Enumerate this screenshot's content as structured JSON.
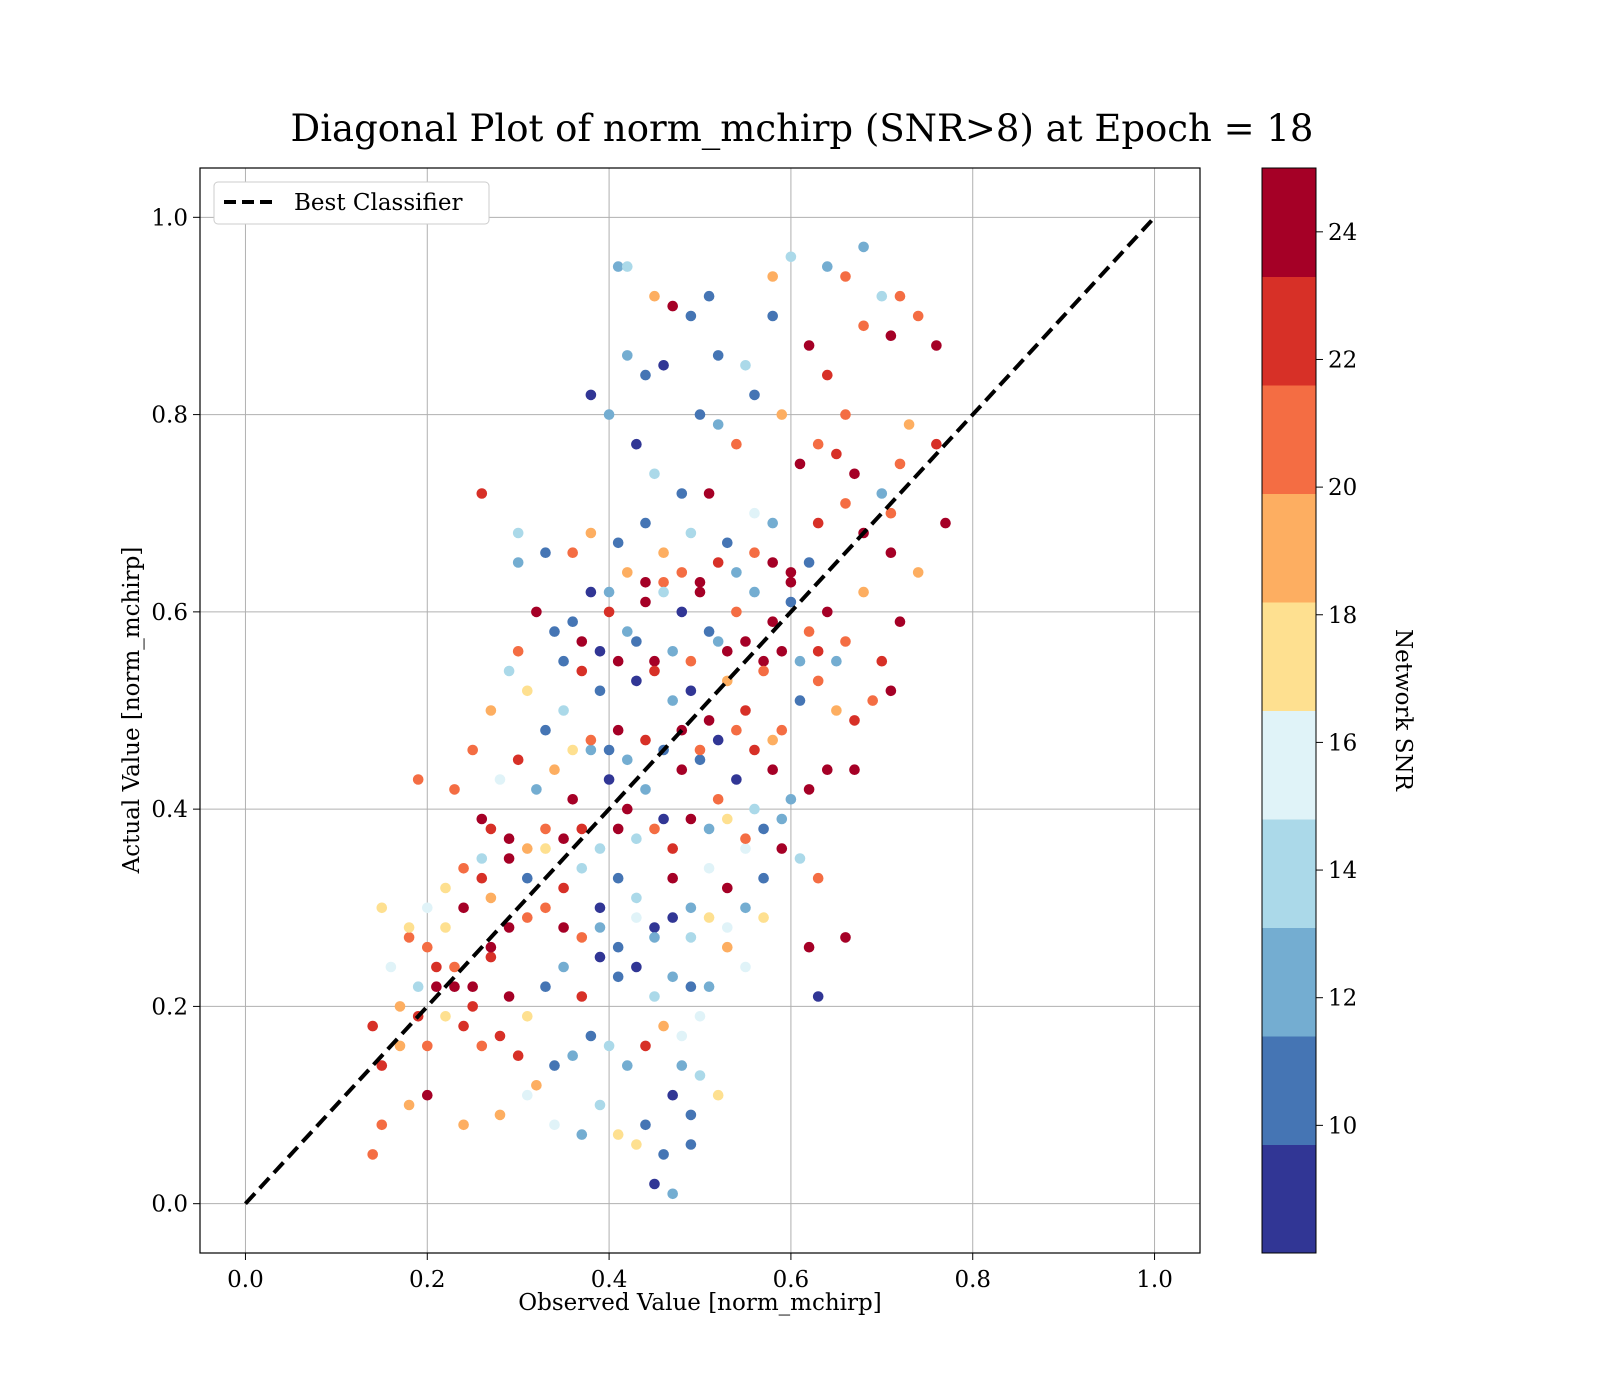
{
  "chart_data": {
    "type": "scatter",
    "title": "Diagonal Plot of norm_mchirp (SNR>8) at Epoch = 18",
    "xlabel": "Observed Value [norm_mchirp]",
    "ylabel": "Actual Value [norm_mchirp]",
    "xlim": [
      -0.05,
      1.05
    ],
    "ylim": [
      -0.05,
      1.05
    ],
    "xticks": [
      "0.0",
      "0.2",
      "0.4",
      "0.6",
      "0.8",
      "1.0"
    ],
    "yticks": [
      "0.0",
      "0.2",
      "0.4",
      "0.6",
      "0.8",
      "1.0"
    ],
    "grid": true,
    "legend": {
      "placement": "top-left",
      "entries": [
        "Best Classifier"
      ]
    },
    "reference_line": {
      "name": "Best Classifier",
      "x": [
        0.0,
        1.0
      ],
      "y": [
        0.0,
        1.0
      ],
      "style": "dashed",
      "color": "#000000"
    },
    "colorbar": {
      "label": "Network SNR",
      "range": [
        8,
        25
      ],
      "ticks": [
        "10",
        "12",
        "14",
        "16",
        "18",
        "20",
        "22",
        "24"
      ],
      "colors": [
        "#313695",
        "#4575b4",
        "#74add1",
        "#abd9e9",
        "#e0f3f8",
        "#fee090",
        "#fdae61",
        "#f46d43",
        "#d73027",
        "#a50026"
      ]
    },
    "points": [
      [
        0.41,
        0.95,
        13.0
      ],
      [
        0.42,
        0.95,
        13.5
      ],
      [
        0.47,
        0.91,
        24.5
      ],
      [
        0.49,
        0.9,
        11.0
      ],
      [
        0.51,
        0.92,
        11.0
      ],
      [
        0.45,
        0.92,
        19.0
      ],
      [
        0.58,
        0.94,
        18.5
      ],
      [
        0.6,
        0.96,
        14.0
      ],
      [
        0.64,
        0.95,
        11.5
      ],
      [
        0.66,
        0.94,
        21.0
      ],
      [
        0.68,
        0.97,
        12.5
      ],
      [
        0.7,
        0.92,
        14.0
      ],
      [
        0.72,
        0.92,
        21.0
      ],
      [
        0.38,
        0.82,
        9.5
      ],
      [
        0.42,
        0.86,
        13.0
      ],
      [
        0.44,
        0.84,
        10.0
      ],
      [
        0.46,
        0.85,
        9.0
      ],
      [
        0.52,
        0.86,
        10.5
      ],
      [
        0.55,
        0.85,
        13.5
      ],
      [
        0.58,
        0.9,
        10.0
      ],
      [
        0.62,
        0.87,
        23.5
      ],
      [
        0.68,
        0.89,
        21.5
      ],
      [
        0.71,
        0.88,
        24.0
      ],
      [
        0.74,
        0.9,
        20.0
      ],
      [
        0.76,
        0.87,
        24.5
      ],
      [
        0.64,
        0.84,
        23.0
      ],
      [
        0.66,
        0.8,
        20.5
      ],
      [
        0.4,
        0.8,
        12.0
      ],
      [
        0.43,
        0.77,
        9.0
      ],
      [
        0.45,
        0.74,
        14.0
      ],
      [
        0.48,
        0.72,
        11.0
      ],
      [
        0.5,
        0.8,
        10.0
      ],
      [
        0.52,
        0.79,
        11.5
      ],
      [
        0.54,
        0.77,
        21.0
      ],
      [
        0.56,
        0.82,
        10.5
      ],
      [
        0.59,
        0.8,
        19.5
      ],
      [
        0.61,
        0.75,
        24.5
      ],
      [
        0.63,
        0.77,
        21.5
      ],
      [
        0.65,
        0.76,
        22.5
      ],
      [
        0.67,
        0.74,
        24.0
      ],
      [
        0.7,
        0.72,
        12.0
      ],
      [
        0.72,
        0.75,
        20.0
      ],
      [
        0.76,
        0.77,
        22.0
      ],
      [
        0.73,
        0.79,
        19.5
      ],
      [
        0.26,
        0.72,
        22.5
      ],
      [
        0.3,
        0.68,
        14.0
      ],
      [
        0.3,
        0.65,
        12.5
      ],
      [
        0.33,
        0.66,
        11.0
      ],
      [
        0.36,
        0.66,
        20.0
      ],
      [
        0.38,
        0.68,
        18.5
      ],
      [
        0.41,
        0.67,
        11.0
      ],
      [
        0.44,
        0.69,
        10.5
      ],
      [
        0.46,
        0.66,
        19.5
      ],
      [
        0.49,
        0.68,
        14.5
      ],
      [
        0.51,
        0.72,
        24.5
      ],
      [
        0.53,
        0.67,
        11.0
      ],
      [
        0.56,
        0.7,
        16.0
      ],
      [
        0.58,
        0.69,
        11.5
      ],
      [
        0.6,
        0.64,
        23.5
      ],
      [
        0.63,
        0.69,
        22.5
      ],
      [
        0.66,
        0.71,
        21.0
      ],
      [
        0.68,
        0.68,
        24.0
      ],
      [
        0.71,
        0.7,
        20.5
      ],
      [
        0.74,
        0.64,
        19.5
      ],
      [
        0.77,
        0.69,
        24.5
      ],
      [
        0.71,
        0.66,
        23.5
      ],
      [
        0.3,
        0.56,
        21.0
      ],
      [
        0.32,
        0.6,
        24.0
      ],
      [
        0.34,
        0.58,
        11.0
      ],
      [
        0.36,
        0.59,
        10.5
      ],
      [
        0.38,
        0.62,
        9.5
      ],
      [
        0.4,
        0.6,
        22.5
      ],
      [
        0.42,
        0.58,
        12.0
      ],
      [
        0.44,
        0.61,
        24.0
      ],
      [
        0.46,
        0.63,
        21.0
      ],
      [
        0.48,
        0.6,
        9.5
      ],
      [
        0.5,
        0.62,
        24.5
      ],
      [
        0.52,
        0.57,
        11.5
      ],
      [
        0.54,
        0.6,
        20.5
      ],
      [
        0.56,
        0.62,
        13.0
      ],
      [
        0.58,
        0.59,
        23.5
      ],
      [
        0.6,
        0.61,
        11.0
      ],
      [
        0.62,
        0.58,
        20.0
      ],
      [
        0.64,
        0.6,
        24.0
      ],
      [
        0.66,
        0.57,
        21.0
      ],
      [
        0.68,
        0.62,
        18.5
      ],
      [
        0.7,
        0.55,
        23.0
      ],
      [
        0.72,
        0.59,
        24.5
      ],
      [
        0.27,
        0.5,
        18.5
      ],
      [
        0.29,
        0.54,
        13.5
      ],
      [
        0.31,
        0.52,
        16.5
      ],
      [
        0.33,
        0.48,
        10.0
      ],
      [
        0.35,
        0.5,
        14.5
      ],
      [
        0.37,
        0.54,
        22.0
      ],
      [
        0.39,
        0.52,
        11.0
      ],
      [
        0.41,
        0.48,
        24.0
      ],
      [
        0.43,
        0.53,
        9.0
      ],
      [
        0.45,
        0.55,
        23.5
      ],
      [
        0.47,
        0.51,
        12.0
      ],
      [
        0.49,
        0.52,
        9.5
      ],
      [
        0.51,
        0.49,
        24.5
      ],
      [
        0.53,
        0.53,
        19.5
      ],
      [
        0.55,
        0.5,
        22.5
      ],
      [
        0.57,
        0.55,
        24.5
      ],
      [
        0.59,
        0.48,
        20.0
      ],
      [
        0.61,
        0.51,
        10.5
      ],
      [
        0.63,
        0.53,
        21.0
      ],
      [
        0.65,
        0.5,
        19.0
      ],
      [
        0.67,
        0.49,
        22.5
      ],
      [
        0.69,
        0.51,
        20.5
      ],
      [
        0.71,
        0.52,
        24.5
      ],
      [
        0.19,
        0.43,
        21.0
      ],
      [
        0.23,
        0.42,
        21.5
      ],
      [
        0.25,
        0.46,
        21.5
      ],
      [
        0.26,
        0.39,
        24.0
      ],
      [
        0.28,
        0.43,
        16.0
      ],
      [
        0.3,
        0.45,
        22.0
      ],
      [
        0.32,
        0.42,
        11.5
      ],
      [
        0.34,
        0.44,
        19.0
      ],
      [
        0.36,
        0.41,
        24.5
      ],
      [
        0.38,
        0.46,
        13.0
      ],
      [
        0.4,
        0.43,
        9.0
      ],
      [
        0.42,
        0.4,
        24.0
      ],
      [
        0.44,
        0.42,
        12.5
      ],
      [
        0.46,
        0.39,
        9.0
      ],
      [
        0.48,
        0.44,
        23.5
      ],
      [
        0.5,
        0.45,
        11.0
      ],
      [
        0.52,
        0.41,
        20.5
      ],
      [
        0.54,
        0.43,
        9.0
      ],
      [
        0.56,
        0.4,
        14.0
      ],
      [
        0.58,
        0.44,
        24.5
      ],
      [
        0.6,
        0.41,
        11.5
      ],
      [
        0.62,
        0.42,
        23.5
      ],
      [
        0.64,
        0.44,
        24.0
      ],
      [
        0.67,
        0.44,
        24.5
      ],
      [
        0.18,
        0.27,
        20.0
      ],
      [
        0.2,
        0.26,
        21.0
      ],
      [
        0.22,
        0.28,
        18.0
      ],
      [
        0.24,
        0.3,
        24.0
      ],
      [
        0.26,
        0.33,
        22.5
      ],
      [
        0.27,
        0.31,
        19.0
      ],
      [
        0.29,
        0.35,
        24.5
      ],
      [
        0.31,
        0.33,
        10.0
      ],
      [
        0.33,
        0.36,
        17.5
      ],
      [
        0.35,
        0.32,
        22.0
      ],
      [
        0.37,
        0.34,
        13.5
      ],
      [
        0.39,
        0.3,
        9.5
      ],
      [
        0.41,
        0.33,
        11.0
      ],
      [
        0.43,
        0.31,
        14.0
      ],
      [
        0.45,
        0.28,
        9.0
      ],
      [
        0.47,
        0.33,
        24.0
      ],
      [
        0.49,
        0.3,
        12.5
      ],
      [
        0.51,
        0.34,
        15.5
      ],
      [
        0.53,
        0.32,
        23.5
      ],
      [
        0.55,
        0.36,
        16.0
      ],
      [
        0.57,
        0.33,
        10.5
      ],
      [
        0.59,
        0.36,
        24.0
      ],
      [
        0.61,
        0.35,
        13.5
      ],
      [
        0.63,
        0.33,
        20.5
      ],
      [
        0.14,
        0.18,
        22.5
      ],
      [
        0.15,
        0.14,
        23.0
      ],
      [
        0.17,
        0.16,
        18.5
      ],
      [
        0.19,
        0.19,
        22.0
      ],
      [
        0.21,
        0.22,
        24.0
      ],
      [
        0.23,
        0.24,
        21.5
      ],
      [
        0.25,
        0.22,
        23.5
      ],
      [
        0.27,
        0.25,
        22.0
      ],
      [
        0.29,
        0.21,
        24.5
      ],
      [
        0.31,
        0.19,
        16.5
      ],
      [
        0.33,
        0.22,
        10.0
      ],
      [
        0.35,
        0.24,
        12.5
      ],
      [
        0.37,
        0.21,
        22.5
      ],
      [
        0.39,
        0.25,
        9.0
      ],
      [
        0.41,
        0.23,
        11.0
      ],
      [
        0.43,
        0.24,
        9.5
      ],
      [
        0.45,
        0.21,
        14.5
      ],
      [
        0.47,
        0.23,
        12.0
      ],
      [
        0.49,
        0.22,
        10.5
      ],
      [
        0.51,
        0.22,
        13.0
      ],
      [
        0.53,
        0.26,
        19.0
      ],
      [
        0.55,
        0.24,
        16.0
      ],
      [
        0.62,
        0.26,
        24.5
      ],
      [
        0.66,
        0.27,
        24.5
      ],
      [
        0.63,
        0.21,
        9.0
      ],
      [
        0.14,
        0.05,
        20.0
      ],
      [
        0.15,
        0.08,
        21.5
      ],
      [
        0.18,
        0.1,
        18.5
      ],
      [
        0.2,
        0.11,
        24.0
      ],
      [
        0.24,
        0.08,
        19.0
      ],
      [
        0.28,
        0.09,
        19.5
      ],
      [
        0.31,
        0.11,
        16.0
      ],
      [
        0.34,
        0.08,
        15.5
      ],
      [
        0.37,
        0.07,
        12.5
      ],
      [
        0.39,
        0.1,
        14.0
      ],
      [
        0.41,
        0.07,
        16.5
      ],
      [
        0.43,
        0.06,
        17.0
      ],
      [
        0.44,
        0.08,
        11.0
      ],
      [
        0.45,
        0.02,
        9.5
      ],
      [
        0.46,
        0.05,
        10.0
      ],
      [
        0.47,
        0.01,
        12.5
      ],
      [
        0.47,
        0.11,
        9.0
      ],
      [
        0.49,
        0.09,
        10.5
      ],
      [
        0.49,
        0.06,
        11.0
      ],
      [
        0.48,
        0.14,
        12.5
      ],
      [
        0.5,
        0.13,
        14.5
      ],
      [
        0.52,
        0.11,
        17.5
      ],
      [
        0.36,
        0.15,
        12.0
      ],
      [
        0.38,
        0.17,
        10.0
      ],
      [
        0.4,
        0.16,
        13.5
      ],
      [
        0.42,
        0.14,
        11.5
      ],
      [
        0.44,
        0.16,
        22.0
      ],
      [
        0.46,
        0.18,
        19.5
      ],
      [
        0.48,
        0.17,
        15.5
      ],
      [
        0.5,
        0.19,
        16.0
      ],
      [
        0.34,
        0.14,
        11.0
      ],
      [
        0.32,
        0.12,
        19.0
      ],
      [
        0.3,
        0.15,
        22.5
      ],
      [
        0.28,
        0.17,
        23.0
      ],
      [
        0.26,
        0.16,
        21.0
      ],
      [
        0.24,
        0.18,
        22.0
      ],
      [
        0.22,
        0.19,
        18.0
      ],
      [
        0.2,
        0.16,
        20.5
      ],
      [
        0.35,
        0.28,
        24.5
      ],
      [
        0.37,
        0.27,
        21.0
      ],
      [
        0.39,
        0.28,
        11.5
      ],
      [
        0.41,
        0.26,
        10.0
      ],
      [
        0.43,
        0.29,
        16.0
      ],
      [
        0.45,
        0.27,
        13.0
      ],
      [
        0.47,
        0.29,
        9.5
      ],
      [
        0.49,
        0.27,
        14.0
      ],
      [
        0.51,
        0.29,
        17.0
      ],
      [
        0.53,
        0.28,
        15.0
      ],
      [
        0.55,
        0.3,
        12.5
      ],
      [
        0.57,
        0.29,
        16.5
      ],
      [
        0.33,
        0.3,
        20.5
      ],
      [
        0.31,
        0.29,
        21.5
      ],
      [
        0.29,
        0.28,
        24.0
      ],
      [
        0.27,
        0.26,
        23.5
      ],
      [
        0.33,
        0.38,
        21.0
      ],
      [
        0.35,
        0.37,
        23.5
      ],
      [
        0.37,
        0.38,
        22.5
      ],
      [
        0.39,
        0.36,
        13.5
      ],
      [
        0.41,
        0.38,
        24.5
      ],
      [
        0.43,
        0.37,
        14.0
      ],
      [
        0.45,
        0.38,
        20.5
      ],
      [
        0.47,
        0.36,
        22.0
      ],
      [
        0.49,
        0.39,
        23.5
      ],
      [
        0.51,
        0.38,
        13.0
      ],
      [
        0.53,
        0.39,
        16.5
      ],
      [
        0.55,
        0.37,
        20.0
      ],
      [
        0.57,
        0.38,
        11.0
      ],
      [
        0.59,
        0.39,
        12.5
      ],
      [
        0.31,
        0.36,
        19.5
      ],
      [
        0.29,
        0.37,
        24.0
      ],
      [
        0.27,
        0.38,
        22.5
      ],
      [
        0.41,
        0.55,
        24.5
      ],
      [
        0.43,
        0.57,
        10.0
      ],
      [
        0.45,
        0.54,
        23.0
      ],
      [
        0.47,
        0.56,
        12.0
      ],
      [
        0.49,
        0.55,
        21.0
      ],
      [
        0.51,
        0.58,
        10.5
      ],
      [
        0.53,
        0.56,
        24.5
      ],
      [
        0.55,
        0.57,
        23.5
      ],
      [
        0.57,
        0.54,
        20.0
      ],
      [
        0.59,
        0.56,
        24.0
      ],
      [
        0.61,
        0.55,
        11.5
      ],
      [
        0.63,
        0.56,
        22.5
      ],
      [
        0.65,
        0.55,
        13.0
      ],
      [
        0.39,
        0.56,
        9.0
      ],
      [
        0.37,
        0.57,
        24.0
      ],
      [
        0.35,
        0.55,
        11.0
      ],
      [
        0.44,
        0.47,
        22.0
      ],
      [
        0.46,
        0.46,
        10.5
      ],
      [
        0.48,
        0.48,
        23.5
      ],
      [
        0.5,
        0.46,
        21.5
      ],
      [
        0.52,
        0.47,
        9.0
      ],
      [
        0.54,
        0.48,
        20.0
      ],
      [
        0.56,
        0.46,
        22.5
      ],
      [
        0.58,
        0.47,
        19.0
      ],
      [
        0.42,
        0.45,
        11.5
      ],
      [
        0.4,
        0.46,
        10.0
      ],
      [
        0.38,
        0.47,
        21.0
      ],
      [
        0.36,
        0.46,
        16.5
      ],
      [
        0.46,
        0.62,
        14.5
      ],
      [
        0.48,
        0.64,
        21.0
      ],
      [
        0.5,
        0.63,
        24.0
      ],
      [
        0.52,
        0.65,
        22.0
      ],
      [
        0.54,
        0.64,
        12.5
      ],
      [
        0.56,
        0.66,
        20.5
      ],
      [
        0.58,
        0.65,
        24.5
      ],
      [
        0.6,
        0.63,
        23.5
      ],
      [
        0.62,
        0.65,
        11.0
      ],
      [
        0.44,
        0.63,
        24.5
      ],
      [
        0.42,
        0.64,
        19.5
      ],
      [
        0.4,
        0.62,
        12.0
      ],
      [
        0.24,
        0.34,
        21.5
      ],
      [
        0.26,
        0.35,
        14.0
      ],
      [
        0.22,
        0.32,
        18.0
      ],
      [
        0.2,
        0.3,
        15.5
      ],
      [
        0.18,
        0.28,
        17.5
      ],
      [
        0.21,
        0.24,
        22.0
      ],
      [
        0.23,
        0.22,
        23.5
      ],
      [
        0.25,
        0.2,
        22.5
      ],
      [
        0.19,
        0.22,
        14.0
      ],
      [
        0.17,
        0.2,
        19.0
      ],
      [
        0.16,
        0.24,
        15.0
      ],
      [
        0.15,
        0.3,
        18.0
      ]
    ]
  }
}
